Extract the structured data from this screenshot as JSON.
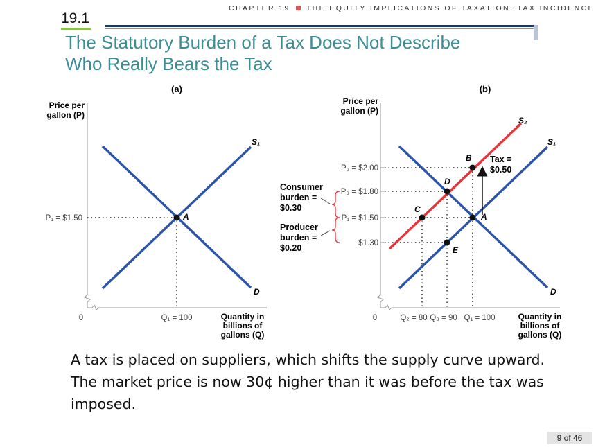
{
  "header": {
    "chapter_left": "CHAPTER 19",
    "chapter_right": "THE EQUITY IMPLICATIONS OF TAXATION: TAX INCIDENCE",
    "section_number": "19.1",
    "title_line1": "The Statutory Burden of a Tax Does Not Describe",
    "title_line2": "Who Really Bears the Tax"
  },
  "panel_a": {
    "label": "(a)",
    "y_axis_label_line1": "Price per",
    "y_axis_label_line2": "gallon (P)",
    "x_axis_label_line1": "Quantity in",
    "x_axis_label_line2": "billions of",
    "x_axis_label_line3": "gallons (Q)",
    "origin": "0",
    "price_tick": "P₁ = $1.50",
    "quantity_tick": "Q₁ = 100",
    "supply_label": "S₁",
    "demand_label": "D",
    "point_label": "A"
  },
  "panel_b": {
    "label": "(b)",
    "y_axis_label_line1": "Price per",
    "y_axis_label_line2": "gallon (P)",
    "x_axis_label_line1": "Quantity in",
    "x_axis_label_line2": "billions of",
    "x_axis_label_line3": "gallons (Q)",
    "origin": "0",
    "price_ticks": [
      "P₂ = $2.00",
      "P₃ = $1.80",
      "P₁ = $1.50",
      "$1.30"
    ],
    "quantity_ticks": [
      "Q₂ = 80",
      "Q₃ = 90",
      "Q₁ = 100"
    ],
    "supply_label": "S₁",
    "shifted_supply_label": "S₂",
    "demand_label": "D",
    "points": [
      "A",
      "B",
      "C",
      "D",
      "E"
    ],
    "tax_label_line1": "Tax =",
    "tax_label_line2": "$0.50",
    "consumer_burden_line1": "Consumer",
    "consumer_burden_line2": "burden =",
    "consumer_burden_line3": "$0.30",
    "producer_burden_line1": "Producer",
    "producer_burden_line2": "burden =",
    "producer_burden_line3": "$0.20"
  },
  "caption": "A tax is placed on suppliers, which shifts the supply curve upward.  The market price is now 30¢ higher than it was before the tax was imposed.",
  "page_indicator": "9 of 46",
  "colors": {
    "title": "#3c8e94",
    "curve_blue": "#2c55a8",
    "curve_red": "#e8333a",
    "burden_brace": "#e8333a",
    "rule_navy": "#1f3864"
  }
}
